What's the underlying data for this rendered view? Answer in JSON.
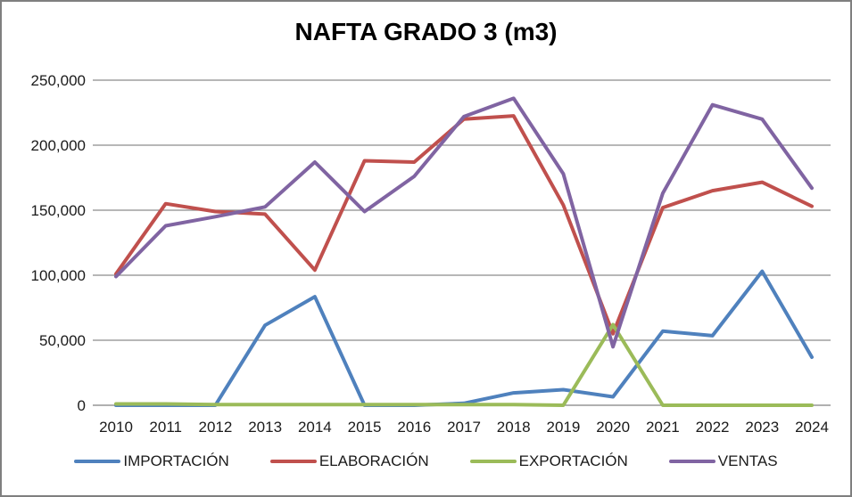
{
  "window": {
    "background": "#ffffff",
    "border_color": "#7f7f7f"
  },
  "chart_data": {
    "type": "line",
    "title": "NAFTA GRADO 3 (m3)",
    "xlabel": "",
    "ylabel": "",
    "categories": [
      "2010",
      "2011",
      "2012",
      "2013",
      "2014",
      "2015",
      "2016",
      "2017",
      "2018",
      "2019",
      "2020",
      "2021",
      "2022",
      "2023",
      "2024"
    ],
    "series": [
      {
        "name": "IMPORTACIÓN",
        "color": "#4F81BD",
        "values": [
          0,
          0,
          0,
          61500,
          83500,
          0,
          0,
          1500,
          9500,
          12000,
          6500,
          57000,
          53500,
          103000,
          37000
        ]
      },
      {
        "name": "ELABORACIÓN",
        "color": "#C0504D",
        "values": [
          101000,
          155000,
          149000,
          147000,
          104000,
          188000,
          187000,
          220000,
          222500,
          154000,
          55000,
          152000,
          165000,
          171500,
          153000
        ]
      },
      {
        "name": "EXPORTACIÓN",
        "color": "#9BBB59",
        "values": [
          1000,
          1000,
          500,
          500,
          500,
          500,
          500,
          500,
          500,
          0,
          62000,
          0,
          0,
          0,
          0
        ]
      },
      {
        "name": "VENTAS",
        "color": "#8064A2",
        "values": [
          99000,
          138000,
          145000,
          152500,
          187000,
          149000,
          176000,
          222000,
          236000,
          178000,
          45000,
          163000,
          231000,
          220000,
          167000
        ]
      }
    ],
    "ylim": [
      0,
      250000
    ],
    "ytick_step": 50000,
    "ytick_labels": [
      "0",
      "50,000",
      "100,000",
      "150,000",
      "200,000",
      "250,000"
    ],
    "grid": true,
    "gridline_color": "#8C8C8C",
    "axis_line_color": "#808080",
    "tick_label_color": "#1a1a1a",
    "legend_position": "bottom"
  }
}
